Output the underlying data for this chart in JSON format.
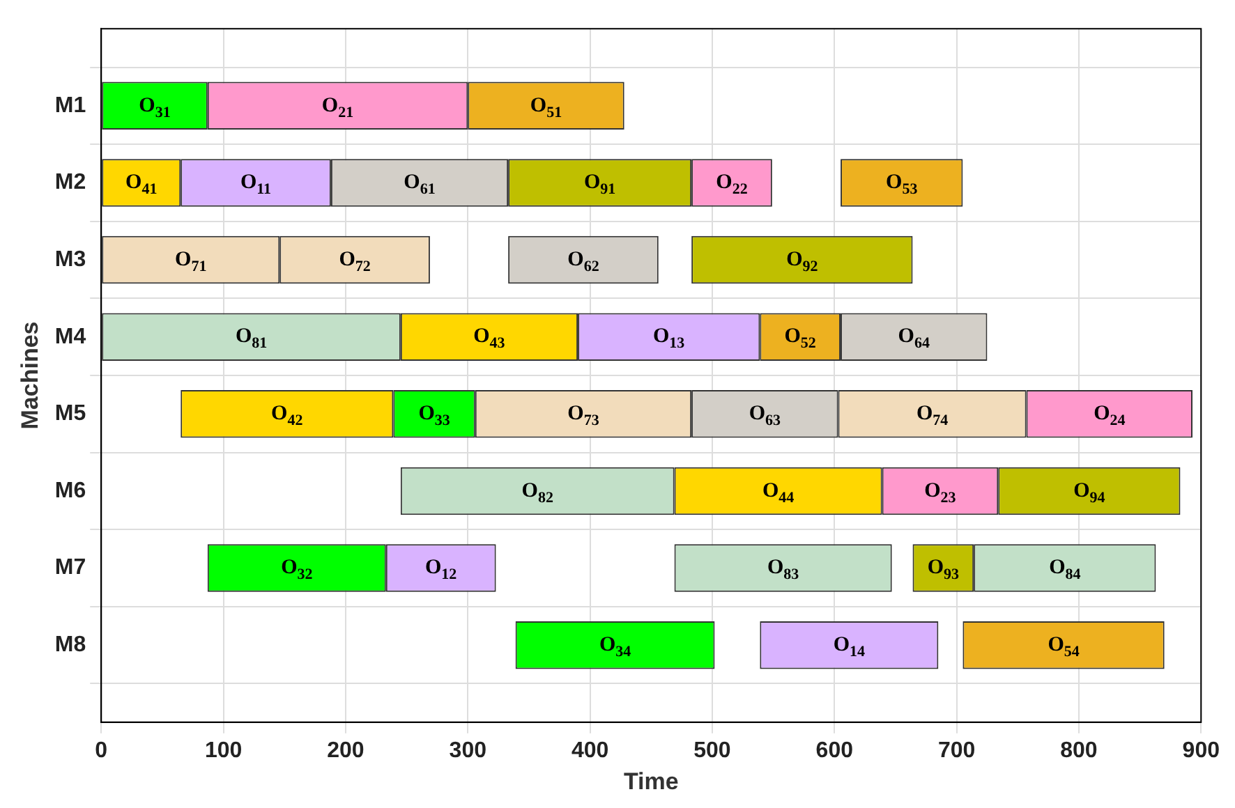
{
  "chart_data": {
    "type": "bar",
    "orientation": "horizontal",
    "xlabel": "Time",
    "ylabel": "Machines",
    "categories": [
      "M1",
      "M2",
      "M3",
      "M4",
      "M5",
      "M6",
      "M7",
      "M8"
    ],
    "xlim": [
      0,
      900
    ],
    "xticks": [
      0,
      100,
      200,
      300,
      400,
      500,
      600,
      700,
      800,
      900
    ],
    "grid": true,
    "series": [
      {
        "base": [
          0,
          0,
          0,
          0,
          65,
          245,
          87,
          339
        ],
        "values": [
          87,
          65,
          146,
          245,
          174,
          224,
          146,
          163
        ],
        "colors": [
          "#00ff00",
          "#ffd700",
          "#f2dcbb",
          "#c2e0c8",
          "#ffd700",
          "#c2e0c8",
          "#00ff00",
          "#00ff00"
        ]
      },
      {
        "base": [
          87,
          65,
          146,
          245,
          239,
          469,
          233,
          539
        ],
        "values": [
          213,
          123,
          123,
          145,
          67,
          170,
          90,
          146
        ],
        "colors": [
          "#ff99cc",
          "#d9b3ff",
          "#f2dcbb",
          "#ffd700",
          "#00ff00",
          "#ffd700",
          "#d9b3ff",
          "#d9b3ff"
        ]
      },
      {
        "base": [
          300,
          188,
          333,
          390,
          306,
          639,
          469,
          705
        ],
        "values": [
          128,
          145,
          123,
          149,
          177,
          95,
          178,
          165
        ],
        "colors": [
          "#edb120",
          "#d3cfc8",
          "#d3cfc8",
          "#d9b3ff",
          "#f2dcbb",
          "#ff99cc",
          "#c2e0c8",
          "#edb120"
        ]
      },
      {
        "base": [
          null,
          333,
          483,
          539,
          483,
          734,
          664,
          null
        ],
        "values": [
          null,
          150,
          181,
          66,
          120,
          149,
          50,
          null
        ],
        "colors": [
          null,
          "#bfbf00",
          "#bfbf00",
          "#edb120",
          "#d3cfc8",
          "#bfbf00",
          "#bfbf00",
          null
        ]
      },
      {
        "base": [
          null,
          483,
          null,
          605,
          603,
          null,
          714,
          null
        ],
        "values": [
          null,
          66,
          null,
          120,
          154,
          null,
          149,
          null
        ],
        "colors": [
          null,
          "#ff99cc",
          null,
          "#d3cfc8",
          "#f2dcbb",
          null,
          "#c2e0c8",
          null
        ]
      },
      {
        "base": [
          null,
          605,
          null,
          null,
          757,
          null,
          null,
          null
        ],
        "values": [
          null,
          100,
          null,
          null,
          136,
          null,
          null,
          null
        ],
        "colors": [
          null,
          "#edb120",
          null,
          null,
          "#ff99cc",
          null,
          null,
          null
        ]
      }
    ],
    "annotations": [
      "O$_{31}$",
      "O$_{21}$",
      "O$_{51}$",
      "O$_{41}$",
      "O$_{11}$",
      "O$_{61}$",
      "O$_{91}$",
      "O$_{22}$",
      "O$_{53}$",
      "O$_{71}$",
      "O$_{72}$",
      "O$_{62}$",
      "O$_{92}$",
      "O$_{81}$",
      "O$_{43}$",
      "O$_{13}$",
      "O$_{52}$",
      "O$_{64}$",
      "O$_{42}$",
      "O$_{33}$",
      "O$_{73}$",
      "O$_{63}$",
      "O$_{74}$",
      "O$_{24}$",
      "O$_{82}$",
      "O$_{44}$",
      "O$_{23}$",
      "O$_{94}$",
      "O$_{32}$",
      "O$_{12}$",
      "O$_{83}$",
      "O$_{93}$",
      "O$_{84}$",
      "O$_{34}$",
      "O$_{14}$",
      "O$_{54}$"
    ]
  }
}
